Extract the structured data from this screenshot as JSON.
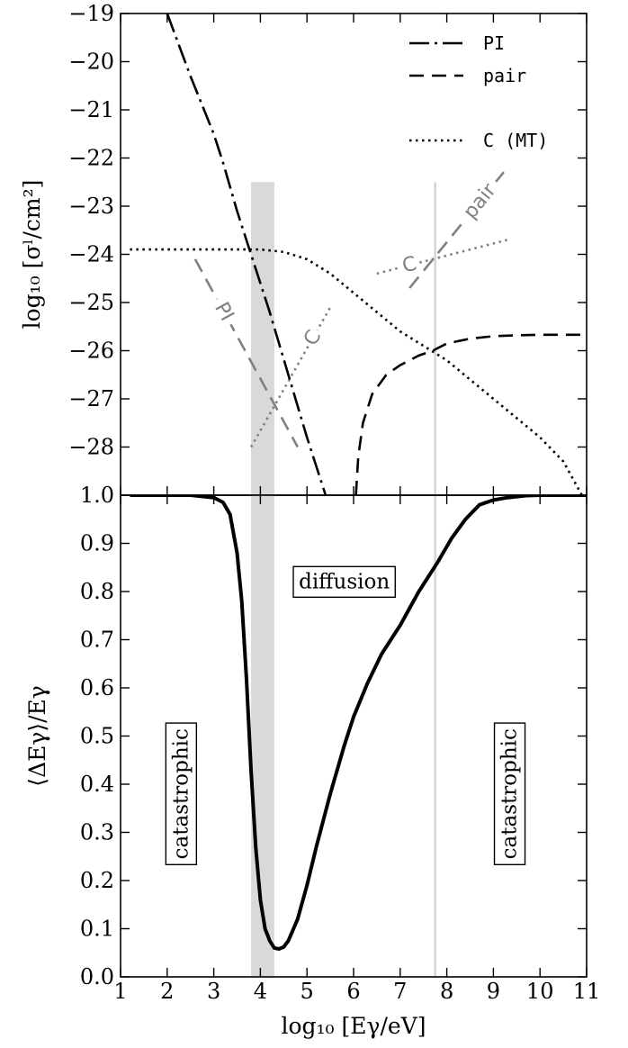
{
  "chart_data": [
    {
      "type": "line",
      "panel": "top",
      "xlabel": "",
      "ylabel": "log₁₀ [σˡ/cm²]",
      "xlim": [
        1,
        11
      ],
      "ylim": [
        -29,
        -19
      ],
      "yticks": [
        -19,
        -20,
        -21,
        -22,
        -23,
        -24,
        -25,
        -26,
        -27,
        -28
      ],
      "series": [
        {
          "name": "PI",
          "style": "dash-dot",
          "color": "#000000",
          "x": [
            2.0,
            2.5,
            3.0,
            3.2,
            3.5,
            3.8,
            4.2,
            4.6,
            5.0,
            5.4
          ],
          "y": [
            -19.0,
            -20.3,
            -21.5,
            -22.1,
            -23.1,
            -24.0,
            -25.2,
            -26.5,
            -27.8,
            -29.0
          ]
        },
        {
          "name": "pair",
          "style": "dashed",
          "color": "#000000",
          "x": [
            6.05,
            6.1,
            6.2,
            6.4,
            6.7,
            7.0,
            7.4,
            7.7,
            8.0,
            8.5,
            9.0,
            9.5,
            10.0,
            11.0
          ],
          "y": [
            -29.0,
            -28.2,
            -27.5,
            -26.9,
            -26.5,
            -26.3,
            -26.1,
            -26.0,
            -25.85,
            -25.75,
            -25.7,
            -25.68,
            -25.67,
            -25.67
          ]
        },
        {
          "name": "C (MT)",
          "style": "dotted",
          "color": "#000000",
          "x": [
            1.2,
            2.0,
            3.0,
            4.0,
            4.5,
            5.0,
            5.5,
            6.0,
            6.5,
            7.0,
            7.5,
            8.0,
            8.5,
            9.0,
            9.5,
            10.0,
            10.5,
            10.9
          ],
          "y": [
            -23.9,
            -23.9,
            -23.9,
            -23.9,
            -23.95,
            -24.1,
            -24.4,
            -24.8,
            -25.2,
            -25.6,
            -25.9,
            -26.2,
            -26.6,
            -27.0,
            -27.4,
            -27.8,
            -28.3,
            -29.0
          ]
        }
      ],
      "inline_lines": [
        {
          "label": "PI",
          "color": "#808080",
          "style": "dashed",
          "x": [
            2.6,
            4.8
          ],
          "y": [
            -24.1,
            -28.0
          ]
        },
        {
          "label": "C",
          "color": "#808080",
          "style": "dotted",
          "x": [
            3.8,
            5.5
          ],
          "y": [
            -28.0,
            -25.1
          ]
        },
        {
          "label": "C",
          "color": "#808080",
          "style": "dotted",
          "x": [
            6.5,
            9.3
          ],
          "y": [
            -24.4,
            -23.7
          ]
        },
        {
          "label": "pair",
          "color": "#808080",
          "style": "dashed",
          "x": [
            7.2,
            9.3
          ],
          "y": [
            -24.7,
            -22.2
          ]
        }
      ],
      "legend": {
        "placement": "top-right",
        "entries": [
          "PI",
          "pair",
          "C (MT)"
        ]
      },
      "shaded_band": {
        "x": [
          3.8,
          4.3
        ],
        "y": [
          -29.0,
          -22.5
        ],
        "color": "#d9d9d9"
      },
      "vertical_line": {
        "x": 7.75,
        "y": [
          -29.0,
          -22.5
        ],
        "color": "#d0d0d0"
      }
    },
    {
      "type": "line",
      "panel": "bottom",
      "xlabel": "log₁₀ [Eγ/eV]",
      "ylabel": "⟨ΔEγ⟩/Eγ",
      "xlim": [
        1,
        11
      ],
      "ylim": [
        0.0,
        1.0
      ],
      "xticks": [
        1,
        2,
        3,
        4,
        5,
        6,
        7,
        8,
        9,
        10,
        11
      ],
      "yticks": [
        0.0,
        0.1,
        0.2,
        0.3,
        0.4,
        0.5,
        0.6,
        0.7,
        0.8,
        0.9,
        1.0
      ],
      "series": [
        {
          "name": "",
          "style": "solid",
          "color": "#000000",
          "x": [
            1.2,
            2.5,
            3.0,
            3.2,
            3.35,
            3.5,
            3.6,
            3.7,
            3.8,
            3.9,
            4.0,
            4.1,
            4.2,
            4.3,
            4.4,
            4.5,
            4.6,
            4.8,
            5.0,
            5.2,
            5.5,
            5.8,
            6.0,
            6.3,
            6.6,
            7.0,
            7.4,
            7.8,
            8.1,
            8.4,
            8.7,
            9.0,
            9.3,
            9.7,
            10.0,
            11.0
          ],
          "y": [
            1.0,
            1.0,
            0.995,
            0.985,
            0.96,
            0.88,
            0.78,
            0.62,
            0.43,
            0.27,
            0.16,
            0.1,
            0.075,
            0.06,
            0.058,
            0.062,
            0.075,
            0.12,
            0.19,
            0.27,
            0.38,
            0.48,
            0.54,
            0.61,
            0.67,
            0.73,
            0.8,
            0.86,
            0.91,
            0.95,
            0.98,
            0.99,
            0.995,
            0.999,
            1.0,
            1.0
          ]
        }
      ],
      "annotations": [
        {
          "text": "diffusion",
          "x": 5.8,
          "y": 0.82,
          "rotation": 0
        },
        {
          "text": "catastrophic",
          "x": 2.3,
          "y": 0.38,
          "rotation": -90
        },
        {
          "text": "catastrophic",
          "x": 9.35,
          "y": 0.38,
          "rotation": -90
        }
      ],
      "shaded_band": {
        "x": [
          3.8,
          4.3
        ],
        "y": [
          0.0,
          1.0
        ],
        "color": "#d9d9d9"
      },
      "vertical_line": {
        "x": 7.75,
        "y": [
          0.0,
          1.0
        ],
        "color": "#d0d0d0"
      }
    }
  ]
}
